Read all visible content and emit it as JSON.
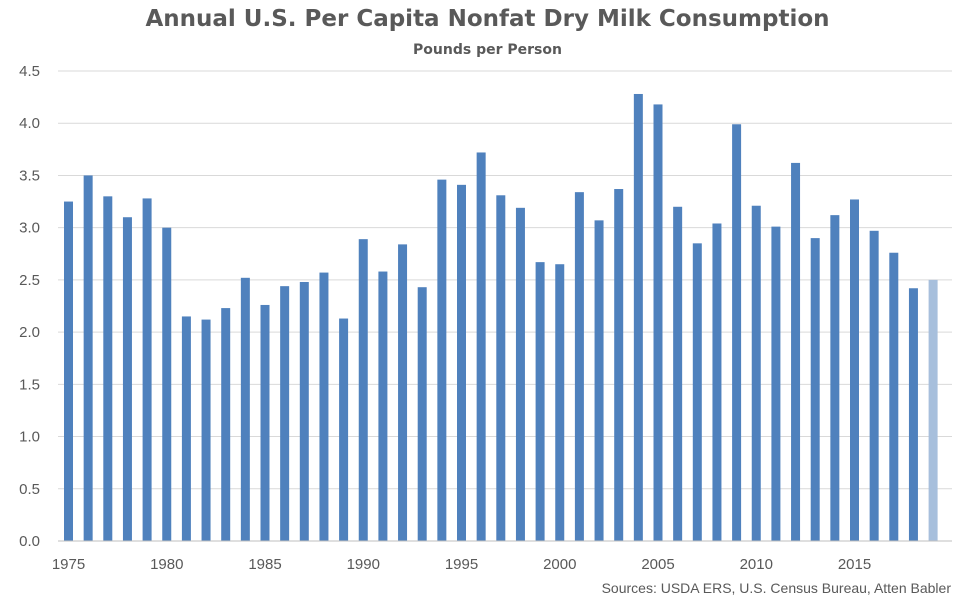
{
  "chart_data": {
    "type": "bar",
    "title": "Annual U.S. Per Capita Nonfat Dry Milk Consumption",
    "subtitle": "Pounds per Person",
    "source": "Sources: USDA ERS, U.S. Census Bureau, Atten Babler",
    "xlabel": "",
    "ylabel": "",
    "ylim": [
      0,
      4.5
    ],
    "yticks": [
      "0.0",
      "0.5",
      "1.0",
      "1.5",
      "2.0",
      "2.5",
      "3.0",
      "3.5",
      "4.0",
      "4.5"
    ],
    "xtick_labels": [
      "1975",
      "1980",
      "1985",
      "1990",
      "1995",
      "2000",
      "2005",
      "2010",
      "2015"
    ],
    "grid": true,
    "categories": [
      1975,
      1976,
      1977,
      1978,
      1979,
      1980,
      1981,
      1982,
      1983,
      1984,
      1985,
      1986,
      1987,
      1988,
      1989,
      1990,
      1991,
      1992,
      1993,
      1994,
      1995,
      1996,
      1997,
      1998,
      1999,
      2000,
      2001,
      2002,
      2003,
      2004,
      2005,
      2006,
      2007,
      2008,
      2009,
      2010,
      2011,
      2012,
      2013,
      2014,
      2015,
      2016,
      2017,
      2018,
      2019
    ],
    "values": [
      3.25,
      3.5,
      3.3,
      3.1,
      3.28,
      3.0,
      2.15,
      2.12,
      2.23,
      2.52,
      2.26,
      2.44,
      2.48,
      2.57,
      2.13,
      2.89,
      2.58,
      2.84,
      2.43,
      3.46,
      3.41,
      3.72,
      3.31,
      3.19,
      2.67,
      2.65,
      3.34,
      3.07,
      3.37,
      4.28,
      4.18,
      3.2,
      2.85,
      3.04,
      3.99,
      3.21,
      3.01,
      3.62,
      2.9,
      3.12,
      3.27,
      2.97,
      2.76,
      2.42,
      2.5
    ],
    "colors": {
      "bar": "#4f81bd",
      "bar_highlight": "#a7bfdc",
      "grid": "#d9d9d9",
      "text": "#595959"
    },
    "highlight_last": true
  }
}
